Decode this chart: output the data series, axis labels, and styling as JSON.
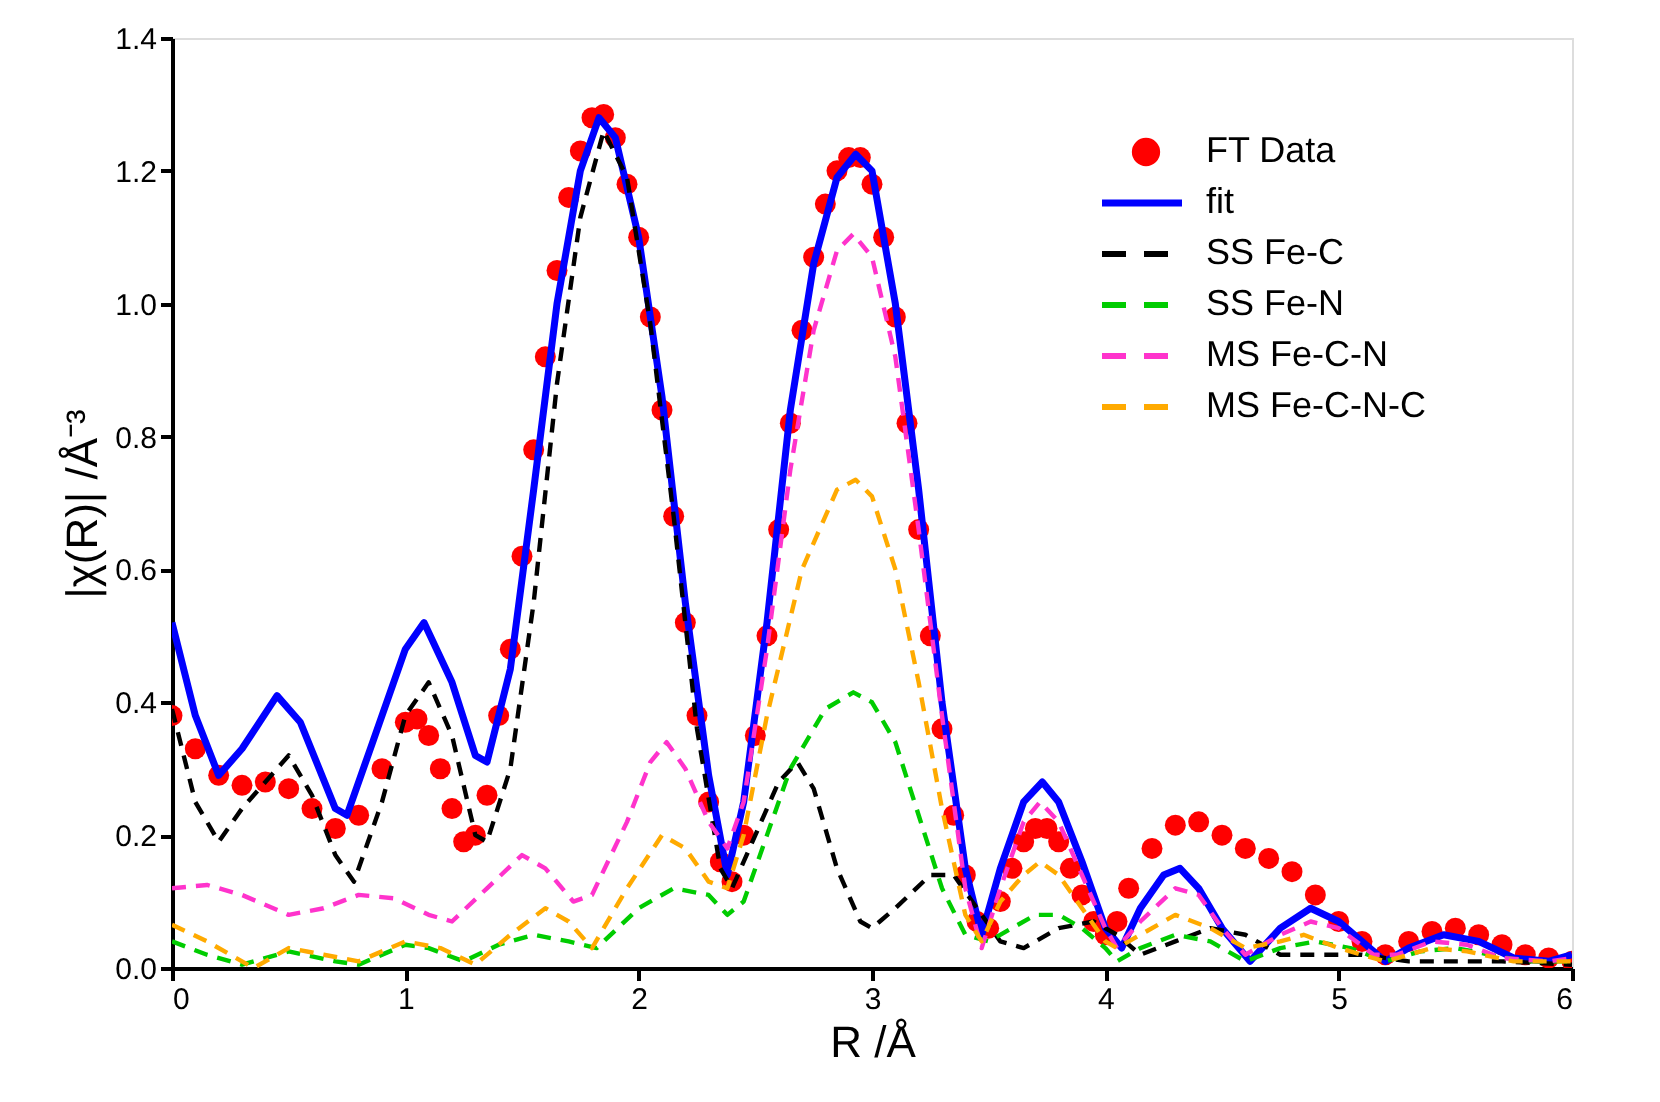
{
  "chart_data": {
    "type": "line",
    "xlabel": "R /Å",
    "ylabel": "|χ(R)| /Å⁻³",
    "xlim": [
      0,
      6
    ],
    "xticks": [
      0,
      1,
      2,
      3,
      4,
      5,
      6
    ],
    "ylim": [
      0,
      1.4
    ],
    "yticks": [
      {
        "value": 0,
        "label": "0.0"
      },
      0.2,
      0.4,
      0.6,
      0.8,
      {
        "value": 1,
        "label": "1.0"
      },
      1.2,
      1.4
    ],
    "grid": false,
    "legend": "top right",
    "series": [
      {
        "name": "FT Data",
        "type": "scatter",
        "marker": "circle",
        "color": "#ff0000",
        "x": [
          0,
          0.1,
          0.2,
          0.3,
          0.4,
          0.5,
          0.6,
          0.7,
          0.8,
          0.9,
          1.0,
          1.05,
          1.1,
          1.15,
          1.2,
          1.25,
          1.3,
          1.35,
          1.4,
          1.45,
          1.5,
          1.55,
          1.6,
          1.65,
          1.7,
          1.75,
          1.8,
          1.85,
          1.9,
          1.95,
          2.0,
          2.05,
          2.1,
          2.15,
          2.2,
          2.25,
          2.3,
          2.35,
          2.4,
          2.45,
          2.5,
          2.55,
          2.6,
          2.65,
          2.7,
          2.75,
          2.8,
          2.85,
          2.9,
          2.95,
          3.0,
          3.05,
          3.1,
          3.15,
          3.2,
          3.25,
          3.3,
          3.35,
          3.4,
          3.45,
          3.5,
          3.55,
          3.6,
          3.65,
          3.7,
          3.75,
          3.8,
          3.85,
          3.9,
          3.95,
          4.0,
          4.05,
          4.1,
          4.2,
          4.3,
          4.4,
          4.5,
          4.6,
          4.7,
          4.8,
          4.9,
          5.0,
          5.1,
          5.2,
          5.3,
          5.4,
          5.5,
          5.6,
          5.7,
          5.8,
          5.9,
          6.0
        ],
        "values": [
          0.38,
          0.33,
          0.29,
          0.275,
          0.28,
          0.27,
          0.24,
          0.21,
          0.23,
          0.3,
          0.37,
          0.375,
          0.35,
          0.3,
          0.24,
          0.19,
          0.2,
          0.26,
          0.38,
          0.48,
          0.62,
          0.78,
          0.92,
          1.05,
          1.16,
          1.23,
          1.28,
          1.285,
          1.25,
          1.18,
          1.1,
          0.98,
          0.84,
          0.68,
          0.52,
          0.38,
          0.25,
          0.16,
          0.13,
          0.2,
          0.35,
          0.5,
          0.66,
          0.82,
          0.96,
          1.07,
          1.15,
          1.2,
          1.22,
          1.22,
          1.18,
          1.1,
          0.98,
          0.82,
          0.66,
          0.5,
          0.36,
          0.23,
          0.14,
          0.07,
          0.06,
          0.1,
          0.15,
          0.19,
          0.21,
          0.21,
          0.19,
          0.15,
          0.11,
          0.07,
          0.05,
          0.07,
          0.12,
          0.18,
          0.215,
          0.22,
          0.2,
          0.18,
          0.165,
          0.145,
          0.11,
          0.07,
          0.04,
          0.02,
          0.04,
          0.055,
          0.06,
          0.05,
          0.035,
          0.02,
          0.015,
          0.01
        ]
      },
      {
        "name": "fit",
        "line_style": "solid",
        "color": "#0000ff",
        "x": [
          0,
          0.1,
          0.2,
          0.3,
          0.45,
          0.55,
          0.7,
          0.75,
          0.85,
          1.0,
          1.08,
          1.2,
          1.3,
          1.35,
          1.45,
          1.55,
          1.65,
          1.75,
          1.83,
          1.9,
          2.0,
          2.1,
          2.2,
          2.3,
          2.38,
          2.45,
          2.55,
          2.65,
          2.75,
          2.85,
          2.93,
          3.0,
          3.1,
          3.2,
          3.3,
          3.4,
          3.47,
          3.55,
          3.65,
          3.73,
          3.8,
          3.9,
          4.0,
          4.07,
          4.15,
          4.25,
          4.32,
          4.4,
          4.5,
          4.62,
          4.75,
          4.88,
          5.0,
          5.1,
          5.2,
          5.3,
          5.45,
          5.6,
          5.75,
          5.9,
          6.0
        ],
        "values": [
          0.52,
          0.38,
          0.29,
          0.33,
          0.41,
          0.37,
          0.24,
          0.23,
          0.33,
          0.48,
          0.52,
          0.43,
          0.32,
          0.31,
          0.45,
          0.72,
          1.0,
          1.2,
          1.28,
          1.25,
          1.1,
          0.86,
          0.55,
          0.29,
          0.14,
          0.25,
          0.52,
          0.84,
          1.06,
          1.19,
          1.225,
          1.2,
          1.0,
          0.72,
          0.4,
          0.15,
          0.05,
          0.15,
          0.25,
          0.28,
          0.25,
          0.16,
          0.06,
          0.03,
          0.09,
          0.14,
          0.15,
          0.12,
          0.06,
          0.01,
          0.06,
          0.09,
          0.07,
          0.04,
          0.01,
          0.03,
          0.05,
          0.04,
          0.015,
          0.01,
          0.02
        ]
      },
      {
        "name": "SS Fe-C",
        "line_style": "dashed",
        "color": "#000000",
        "x": [
          0,
          0.1,
          0.2,
          0.3,
          0.5,
          0.6,
          0.7,
          0.78,
          0.9,
          1.0,
          1.1,
          1.2,
          1.3,
          1.35,
          1.45,
          1.55,
          1.65,
          1.75,
          1.85,
          1.95,
          2.05,
          2.15,
          2.25,
          2.35,
          2.4,
          2.5,
          2.6,
          2.68,
          2.75,
          2.85,
          2.95,
          3.0,
          3.1,
          3.25,
          3.35,
          3.45,
          3.55,
          3.65,
          3.8,
          3.95,
          4.05,
          4.15,
          4.3,
          4.45,
          4.6,
          4.75,
          4.9,
          5.1,
          5.3,
          5.5,
          5.7,
          6.0
        ],
        "values": [
          0.39,
          0.25,
          0.19,
          0.24,
          0.32,
          0.26,
          0.17,
          0.13,
          0.25,
          0.38,
          0.43,
          0.35,
          0.2,
          0.19,
          0.3,
          0.55,
          0.88,
          1.13,
          1.26,
          1.19,
          0.97,
          0.68,
          0.36,
          0.15,
          0.12,
          0.2,
          0.28,
          0.31,
          0.27,
          0.15,
          0.07,
          0.06,
          0.09,
          0.14,
          0.14,
          0.09,
          0.04,
          0.03,
          0.06,
          0.07,
          0.05,
          0.02,
          0.04,
          0.06,
          0.05,
          0.02,
          0.02,
          0.02,
          0.01,
          0.01,
          0.01,
          0.005
        ]
      },
      {
        "name": "SS Fe-N",
        "line_style": "dashed",
        "color": "#00cc00",
        "x": [
          0,
          0.15,
          0.3,
          0.5,
          0.7,
          0.8,
          1.0,
          1.1,
          1.25,
          1.4,
          1.55,
          1.7,
          1.82,
          2.0,
          2.15,
          2.3,
          2.38,
          2.45,
          2.55,
          2.65,
          2.8,
          2.92,
          3.0,
          3.1,
          3.2,
          3.3,
          3.4,
          3.5,
          3.6,
          3.7,
          3.8,
          3.9,
          4.0,
          4.05,
          4.15,
          4.3,
          4.45,
          4.6,
          4.75,
          4.9,
          5.05,
          5.2,
          5.35,
          5.5,
          5.65,
          5.8,
          6.0
        ],
        "values": [
          0.04,
          0.02,
          0.005,
          0.025,
          0.01,
          0.005,
          0.035,
          0.03,
          0.01,
          0.035,
          0.05,
          0.04,
          0.03,
          0.09,
          0.12,
          0.11,
          0.08,
          0.1,
          0.2,
          0.3,
          0.39,
          0.415,
          0.4,
          0.34,
          0.23,
          0.12,
          0.05,
          0.04,
          0.06,
          0.08,
          0.08,
          0.06,
          0.03,
          0.01,
          0.03,
          0.05,
          0.04,
          0.01,
          0.03,
          0.04,
          0.03,
          0.01,
          0.025,
          0.03,
          0.02,
          0.01,
          0.01
        ]
      },
      {
        "name": "MS Fe-C-N",
        "line_style": "dashed",
        "color": "#ff33cc",
        "x": [
          0,
          0.15,
          0.3,
          0.5,
          0.65,
          0.8,
          0.95,
          1.1,
          1.2,
          1.35,
          1.5,
          1.6,
          1.72,
          1.8,
          1.95,
          2.05,
          2.12,
          2.2,
          2.3,
          2.38,
          2.45,
          2.55,
          2.65,
          2.75,
          2.85,
          2.92,
          3.0,
          3.1,
          3.2,
          3.3,
          3.4,
          3.47,
          3.55,
          3.65,
          3.72,
          3.8,
          3.9,
          4.0,
          4.05,
          4.15,
          4.3,
          4.4,
          4.5,
          4.6,
          4.75,
          4.88,
          5.0,
          5.15,
          5.25,
          5.4,
          5.55,
          5.7,
          5.9,
          6.0
        ],
        "values": [
          0.12,
          0.125,
          0.11,
          0.08,
          0.09,
          0.11,
          0.105,
          0.08,
          0.07,
          0.12,
          0.17,
          0.15,
          0.1,
          0.11,
          0.22,
          0.31,
          0.34,
          0.3,
          0.22,
          0.18,
          0.25,
          0.48,
          0.75,
          0.96,
          1.08,
          1.105,
          1.07,
          0.92,
          0.66,
          0.38,
          0.12,
          0.03,
          0.12,
          0.22,
          0.25,
          0.22,
          0.14,
          0.06,
          0.03,
          0.07,
          0.12,
          0.11,
          0.06,
          0.02,
          0.05,
          0.07,
          0.06,
          0.02,
          0.02,
          0.04,
          0.035,
          0.015,
          0.01,
          0.015
        ]
      },
      {
        "name": "MS Fe-C-N-C",
        "line_style": "dashed",
        "color": "#ffaa00",
        "x": [
          0,
          0.15,
          0.3,
          0.35,
          0.5,
          0.65,
          0.8,
          1.0,
          1.15,
          1.3,
          1.45,
          1.6,
          1.7,
          1.8,
          1.95,
          2.1,
          2.2,
          2.3,
          2.38,
          2.45,
          2.55,
          2.7,
          2.85,
          2.93,
          3.0,
          3.1,
          3.2,
          3.3,
          3.4,
          3.47,
          3.55,
          3.65,
          3.72,
          3.8,
          3.9,
          4.0,
          4.05,
          4.15,
          4.3,
          4.45,
          4.6,
          4.75,
          4.85,
          5.0,
          5.2,
          5.4,
          5.55,
          5.75,
          6.0
        ],
        "values": [
          0.065,
          0.04,
          0.01,
          0.0,
          0.03,
          0.02,
          0.01,
          0.04,
          0.03,
          0.005,
          0.05,
          0.09,
          0.07,
          0.03,
          0.12,
          0.2,
          0.18,
          0.13,
          0.12,
          0.2,
          0.38,
          0.6,
          0.72,
          0.735,
          0.71,
          0.6,
          0.43,
          0.24,
          0.08,
          0.04,
          0.1,
          0.14,
          0.16,
          0.14,
          0.09,
          0.04,
          0.03,
          0.05,
          0.08,
          0.06,
          0.03,
          0.04,
          0.05,
          0.03,
          0.01,
          0.03,
          0.025,
          0.01,
          0.01
        ]
      }
    ]
  }
}
